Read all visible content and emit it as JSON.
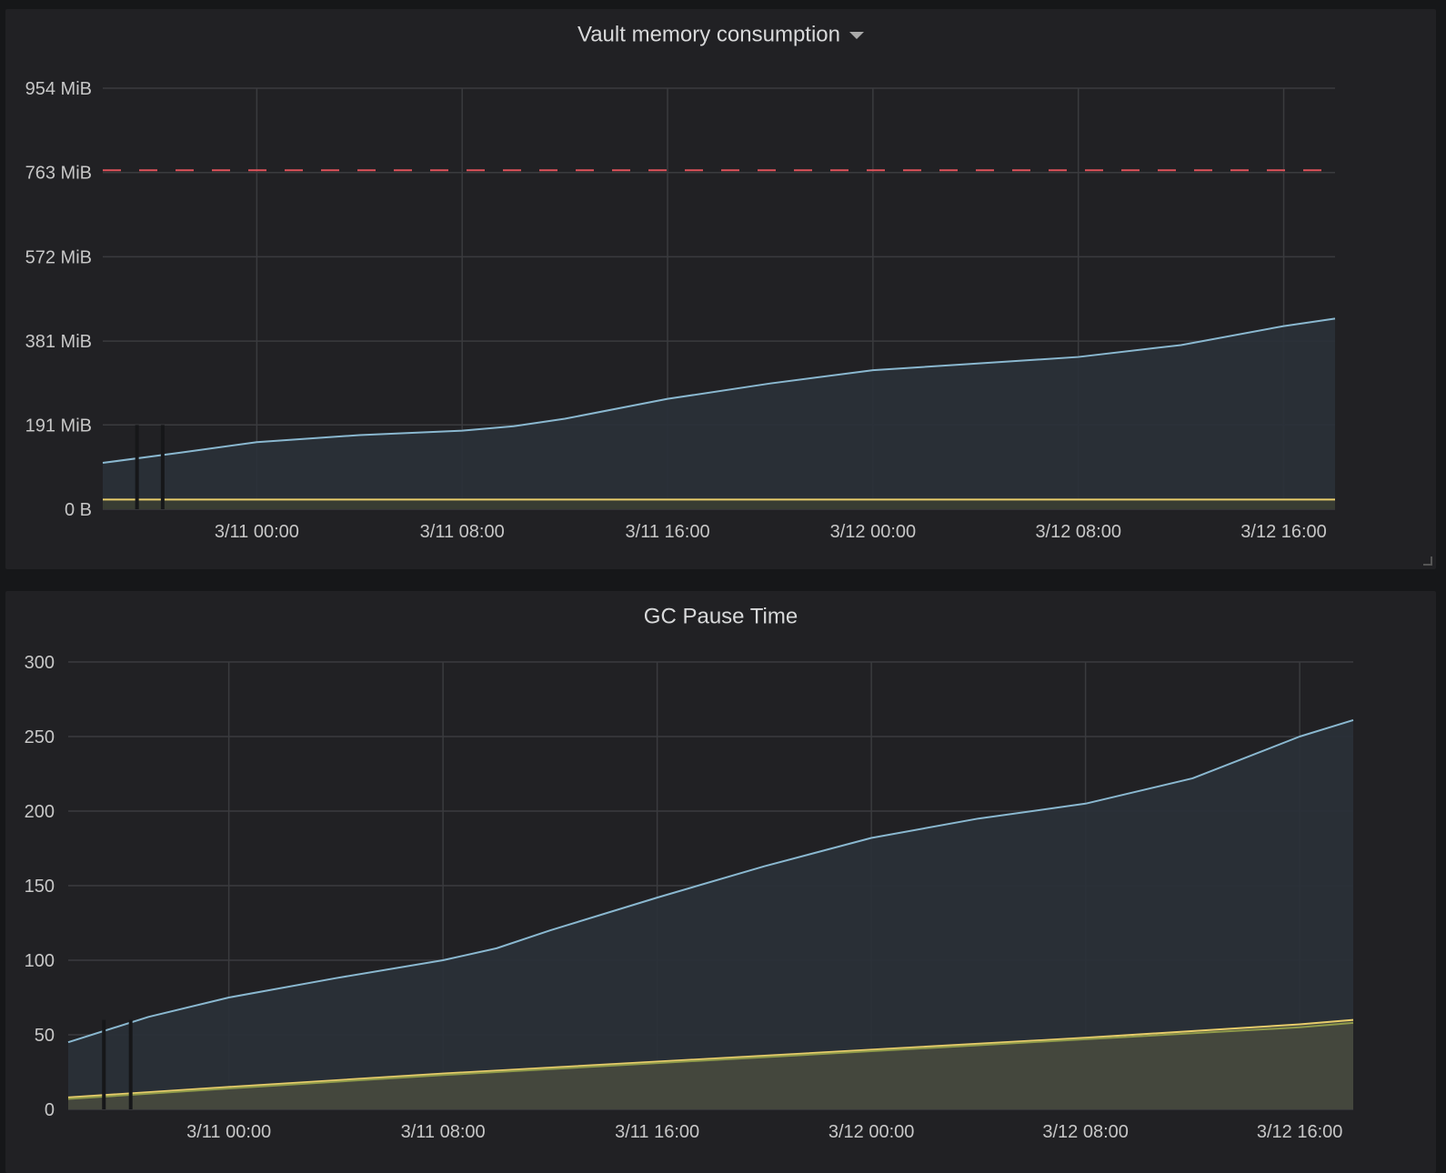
{
  "chart_data": [
    {
      "type": "area",
      "title": "Vault memory consumption",
      "x_ticks": [
        "3/11 00:00",
        "3/11 08:00",
        "3/11 16:00",
        "3/12 00:00",
        "3/12 08:00",
        "3/12 16:00"
      ],
      "y_ticks": [
        "0 B",
        "191 MiB",
        "381 MiB",
        "572 MiB",
        "763 MiB",
        "954 MiB"
      ],
      "x_range": [
        "3/10 18:00",
        "3/12 18:00"
      ],
      "ylim": [
        0,
        954
      ],
      "y_unit": "MiB",
      "threshold": {
        "value": 768,
        "color": "#e0535b",
        "style": "dashed"
      },
      "grid": true,
      "series": [
        {
          "color": "#8ab8d0",
          "fill": "#2a3138",
          "x": [
            "3/10 18:00",
            "3/10 21:00",
            "3/11 00:00",
            "3/11 04:00",
            "3/11 08:00",
            "3/11 10:00",
            "3/11 12:00",
            "3/11 16:00",
            "3/11 20:00",
            "3/12 00:00",
            "3/12 04:00",
            "3/12 08:00",
            "3/12 12:00",
            "3/12 16:00",
            "3/12 18:00"
          ],
          "values": [
            105,
            128,
            152,
            168,
            178,
            188,
            205,
            250,
            285,
            315,
            330,
            345,
            372,
            415,
            432
          ]
        },
        {
          "color": "#e8cd6b",
          "fill": "#3a3e33",
          "x": [
            "3/10 18:00",
            "3/12 18:00"
          ],
          "values": [
            22,
            22
          ]
        }
      ],
      "gaps": [
        "3/10 19:20",
        "3/10 20:20"
      ]
    },
    {
      "type": "area",
      "title": "GC Pause Time",
      "x_ticks": [
        "3/11 00:00",
        "3/11 08:00",
        "3/11 16:00",
        "3/12 00:00",
        "3/12 08:00",
        "3/12 16:00"
      ],
      "y_ticks": [
        "0",
        "50",
        "100",
        "150",
        "200",
        "250",
        "300"
      ],
      "x_range": [
        "3/10 18:00",
        "3/12 18:00"
      ],
      "ylim": [
        0,
        300
      ],
      "grid": true,
      "series": [
        {
          "color": "#8ab8d0",
          "fill": "#2a3138",
          "x": [
            "3/10 18:00",
            "3/10 21:00",
            "3/11 00:00",
            "3/11 04:00",
            "3/11 08:00",
            "3/11 10:00",
            "3/11 12:00",
            "3/11 16:00",
            "3/11 20:00",
            "3/12 00:00",
            "3/12 04:00",
            "3/12 08:00",
            "3/12 12:00",
            "3/12 16:00",
            "3/12 18:00"
          ],
          "values": [
            45,
            62,
            75,
            88,
            100,
            108,
            120,
            142,
            163,
            182,
            195,
            205,
            222,
            250,
            261
          ]
        },
        {
          "color": "#e8cd6b",
          "fill": "#474a3e",
          "x": [
            "3/10 18:00",
            "3/11 00:00",
            "3/11 08:00",
            "3/11 16:00",
            "3/12 00:00",
            "3/12 08:00",
            "3/12 16:00",
            "3/12 18:00"
          ],
          "values": [
            8,
            15,
            24,
            32,
            40,
            48,
            57,
            60
          ]
        },
        {
          "color": "#8f9a4a",
          "fill": "none",
          "x": [
            "3/10 18:00",
            "3/11 00:00",
            "3/11 08:00",
            "3/11 16:00",
            "3/12 00:00",
            "3/12 08:00",
            "3/12 16:00",
            "3/12 18:00"
          ],
          "values": [
            7,
            14,
            23,
            31,
            39,
            47,
            55,
            58
          ]
        }
      ],
      "gaps": [
        "3/10 19:20",
        "3/10 20:20"
      ]
    }
  ]
}
